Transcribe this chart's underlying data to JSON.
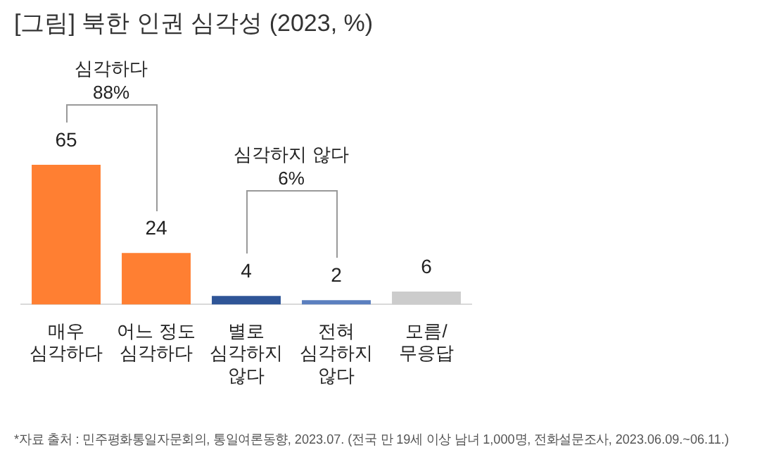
{
  "chart_data": {
    "type": "bar",
    "title": "[그림] 북한 인권 심각성 (2023, %)",
    "categories": [
      "매우\n심각하다",
      "어느 정도\n심각하다",
      "별로\n심각하지\n않다",
      "전혀\n심각하지\n않다",
      "모름/\n무응답"
    ],
    "values": [
      65,
      24,
      4,
      2,
      6
    ],
    "colors": [
      "#ff7f32",
      "#ff7f32",
      "#2f5597",
      "#5b7fbf",
      "#cccccc"
    ],
    "data_labels": true,
    "grid": false,
    "legend": false,
    "tick_labels": "x",
    "annotations": [
      "심각하다",
      "88%",
      "심각하지 않다",
      "6%",
      "*자료 출처 : 민주평화통일자문회의, 통일여론동향, 2023.07. (전국 만 19세 이상 남녀 1,000명, 전화설문조사, 2023.06.09.~06.11.)"
    ]
  }
}
